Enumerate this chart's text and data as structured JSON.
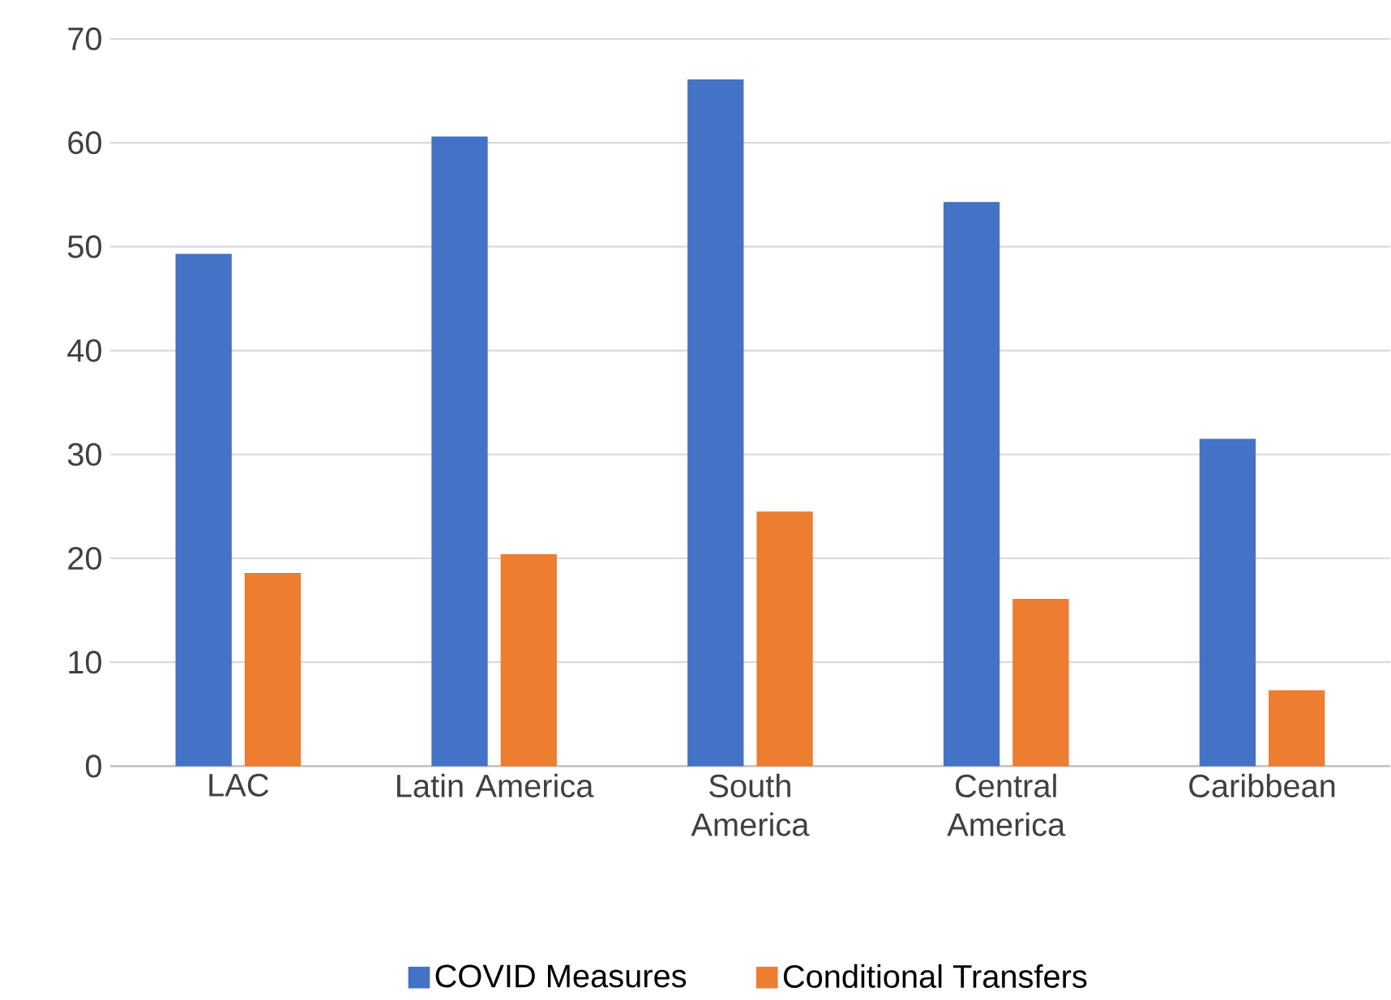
{
  "chart_data": {
    "type": "bar",
    "categories": [
      "LAC",
      "Latin America",
      "South America",
      "Central America",
      "Caribbean"
    ],
    "series": [
      {
        "name": "COVID Measures",
        "color": "#4472c4",
        "values": [
          49.3,
          60.6,
          66.1,
          54.3,
          31.5
        ]
      },
      {
        "name": "Conditional Transfers",
        "color": "#ed7d31",
        "values": [
          18.6,
          20.4,
          24.5,
          16.1,
          7.3
        ]
      }
    ],
    "ylim": [
      0,
      70
    ],
    "yticks": [
      0,
      10,
      20,
      30,
      40,
      50,
      60,
      70
    ],
    "grid": "y",
    "legend": "bottom"
  }
}
